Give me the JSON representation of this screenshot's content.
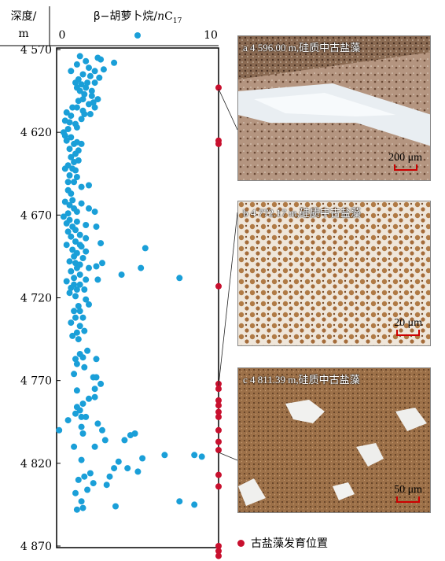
{
  "chart_data": {
    "type": "scatter",
    "ylabel_top": "深度/",
    "ylabel_unit": "m",
    "xlabel_prefix": "β−胡萝卜烷/",
    "xlabel_n": "n",
    "xlabel_c": "C",
    "xlabel_sub": "17",
    "xlim": [
      0,
      10
    ],
    "x_ticks": [
      "0",
      "10"
    ],
    "ylim": [
      4570,
      4870
    ],
    "y_ticks": [
      4570,
      4620,
      4670,
      4720,
      4770,
      4820,
      4870
    ],
    "y_tick_labels": [
      "4 570",
      "4 620",
      "4 670",
      "4 720",
      "4 770",
      "4 820",
      "4 870"
    ],
    "series": [
      {
        "color": "#1a9fd8",
        "points": [
          [
            1.2,
            4574
          ],
          [
            1.6,
            4577
          ],
          [
            2.4,
            4575
          ],
          [
            2.6,
            4576
          ],
          [
            3.5,
            4578
          ],
          [
            1.0,
            4579
          ],
          [
            1.8,
            4581
          ],
          [
            0.6,
            4583
          ],
          [
            2.2,
            4583
          ],
          [
            2.8,
            4582
          ],
          [
            1.4,
            4585
          ],
          [
            1.9,
            4586
          ],
          [
            2.5,
            4587
          ],
          [
            1.1,
            4588
          ],
          [
            0.9,
            4590
          ],
          [
            1.7,
            4590
          ],
          [
            2.2,
            4590
          ],
          [
            1.3,
            4591
          ],
          [
            1.0,
            4593
          ],
          [
            1.6,
            4593
          ],
          [
            1.2,
            4595
          ],
          [
            2.0,
            4595
          ],
          [
            1.5,
            4597
          ],
          [
            1.4,
            4600
          ],
          [
            2.0,
            4598
          ],
          [
            2.4,
            4600
          ],
          [
            1.1,
            4601
          ],
          [
            2.1,
            4602
          ],
          [
            1.8,
            4603
          ],
          [
            0.7,
            4605
          ],
          [
            1.0,
            4605
          ],
          [
            2.2,
            4605
          ],
          [
            1.4,
            4607
          ],
          [
            0.3,
            4608
          ],
          [
            1.5,
            4609
          ],
          [
            1.9,
            4609
          ],
          [
            0.6,
            4610
          ],
          [
            1.3,
            4612
          ],
          [
            0.2,
            4613
          ],
          [
            0.5,
            4614
          ],
          [
            0.9,
            4615
          ],
          [
            1.0,
            4617
          ],
          [
            0.4,
            4618
          ],
          [
            0.1,
            4620
          ],
          [
            0.2,
            4622
          ],
          [
            0.6,
            4623
          ],
          [
            0.3,
            4625
          ],
          [
            1.0,
            4626
          ],
          [
            0.8,
            4627
          ],
          [
            1.3,
            4627
          ],
          [
            0.5,
            4630
          ],
          [
            1.1,
            4631
          ],
          [
            0.9,
            4633
          ],
          [
            0.6,
            4635
          ],
          [
            1.1,
            4637
          ],
          [
            0.8,
            4638
          ],
          [
            0.4,
            4640
          ],
          [
            0.2,
            4642
          ],
          [
            0.7,
            4642
          ],
          [
            0.9,
            4643
          ],
          [
            0.5,
            4646
          ],
          [
            1.0,
            4647
          ],
          [
            0.4,
            4650
          ],
          [
            0.8,
            4650
          ],
          [
            0.4,
            4655
          ],
          [
            1.3,
            4653
          ],
          [
            1.8,
            4652
          ],
          [
            0.6,
            4657
          ],
          [
            0.7,
            4661
          ],
          [
            0.2,
            4662
          ],
          [
            1.3,
            4663
          ],
          [
            0.5,
            4664
          ],
          [
            0.8,
            4666
          ],
          [
            1.0,
            4668
          ],
          [
            1.8,
            4666
          ],
          [
            2.2,
            4668
          ],
          [
            0.4,
            4669
          ],
          [
            0.1,
            4671
          ],
          [
            0.5,
            4673
          ],
          [
            1.0,
            4674
          ],
          [
            0.3,
            4675
          ],
          [
            0.7,
            4677
          ],
          [
            1.6,
            4676
          ],
          [
            2.3,
            4677
          ],
          [
            0.9,
            4679
          ],
          [
            0.4,
            4680
          ],
          [
            1.2,
            4682
          ],
          [
            0.6,
            4683
          ],
          [
            1.6,
            4684
          ],
          [
            0.9,
            4686
          ],
          [
            1.2,
            4688
          ],
          [
            0.3,
            4688
          ],
          [
            0.7,
            4691
          ],
          [
            2.6,
            4687
          ],
          [
            1.3,
            4689
          ],
          [
            1.0,
            4693
          ],
          [
            1.6,
            4692
          ],
          [
            5.6,
            4690
          ],
          [
            0.8,
            4695
          ],
          [
            1.4,
            4696
          ],
          [
            0.5,
            4698
          ],
          [
            0.9,
            4699
          ],
          [
            2.7,
            4699
          ],
          [
            1.2,
            4700
          ],
          [
            1.8,
            4702
          ],
          [
            2.3,
            4701
          ],
          [
            1.0,
            4702
          ],
          [
            5.3,
            4702
          ],
          [
            0.6,
            4704
          ],
          [
            1.2,
            4706
          ],
          [
            4.0,
            4706
          ],
          [
            0.8,
            4708
          ],
          [
            1.6,
            4709
          ],
          [
            2.4,
            4709
          ],
          [
            7.9,
            4708
          ],
          [
            0.3,
            4710
          ],
          [
            0.8,
            4712
          ],
          [
            1.2,
            4712
          ],
          [
            0.6,
            4714
          ],
          [
            1.0,
            4715
          ],
          [
            1.5,
            4715
          ],
          [
            0.5,
            4717
          ],
          [
            0.9,
            4719
          ],
          [
            1.6,
            4721
          ],
          [
            1.8,
            4724
          ],
          [
            1.1,
            4725
          ],
          [
            0.8,
            4728
          ],
          [
            1.2,
            4728
          ],
          [
            0.9,
            4732
          ],
          [
            1.4,
            4732
          ],
          [
            0.6,
            4735
          ],
          [
            1.2,
            4737
          ],
          [
            1.5,
            4740
          ],
          [
            1.0,
            4741
          ],
          [
            0.7,
            4743
          ],
          [
            1.1,
            4745
          ],
          [
            1.7,
            4752
          ],
          [
            1.2,
            4754
          ],
          [
            0.9,
            4757
          ],
          [
            1.4,
            4756
          ],
          [
            2.3,
            4757
          ],
          [
            1.0,
            4760
          ],
          [
            1.5,
            4762
          ],
          [
            0.8,
            4766
          ],
          [
            2.1,
            4768
          ],
          [
            2.3,
            4768
          ],
          [
            2.6,
            4772
          ],
          [
            2.2,
            4775
          ],
          [
            1.0,
            4776
          ],
          [
            2.2,
            4780
          ],
          [
            1.8,
            4781
          ],
          [
            1.4,
            4784
          ],
          [
            1.0,
            4786
          ],
          [
            1.2,
            4788
          ],
          [
            0.9,
            4790
          ],
          [
            1.3,
            4792
          ],
          [
            1.6,
            4792
          ],
          [
            0.4,
            4794
          ],
          [
            2.4,
            4796
          ],
          [
            1.3,
            4798
          ],
          [
            2.7,
            4800
          ],
          [
            -0.2,
            4800
          ],
          [
            1.4,
            4802
          ],
          [
            4.6,
            4803
          ],
          [
            4.9,
            4802
          ],
          [
            4.2,
            4806
          ],
          [
            2.9,
            4806
          ],
          [
            2.2,
            4810
          ],
          [
            0.8,
            4810
          ],
          [
            6.9,
            4815
          ],
          [
            8.9,
            4815
          ],
          [
            9.4,
            4816
          ],
          [
            5.4,
            4817
          ],
          [
            1.3,
            4818
          ],
          [
            3.8,
            4819
          ],
          [
            4.4,
            4823
          ],
          [
            3.5,
            4823
          ],
          [
            5.1,
            4825
          ],
          [
            1.9,
            4826
          ],
          [
            1.5,
            4828
          ],
          [
            3.2,
            4828
          ],
          [
            1.1,
            4830
          ],
          [
            2.1,
            4832
          ],
          [
            3.0,
            4833
          ],
          [
            1.7,
            4836
          ],
          [
            0.9,
            4838
          ],
          [
            1.3,
            4843
          ],
          [
            7.9,
            4843
          ],
          [
            8.9,
            4845
          ],
          [
            3.6,
            4846
          ],
          [
            1.0,
            4848
          ],
          [
            1.4,
            4847
          ]
        ]
      }
    ],
    "red_marker_depths": [
      4593,
      4625,
      4627,
      4713,
      4772,
      4775,
      4782,
      4785,
      4789,
      4792,
      4800,
      4807,
      4812,
      4827,
      4834,
      4870,
      4873,
      4876
    ],
    "legend": "古盐藻发育位置",
    "panels": [
      {
        "caption": "a 4 596.00 m,硅质中古盐藻",
        "scale": "200 μm"
      },
      {
        "caption": "b 4 772.17 m,硅质中古盐藻",
        "scale": "20 μm"
      },
      {
        "caption": "c 4 811.39 m,硅质中古盐藻",
        "scale": "50 μm"
      }
    ],
    "colors": {
      "point": "#1a9fd8",
      "marker": "#c8102e"
    }
  }
}
